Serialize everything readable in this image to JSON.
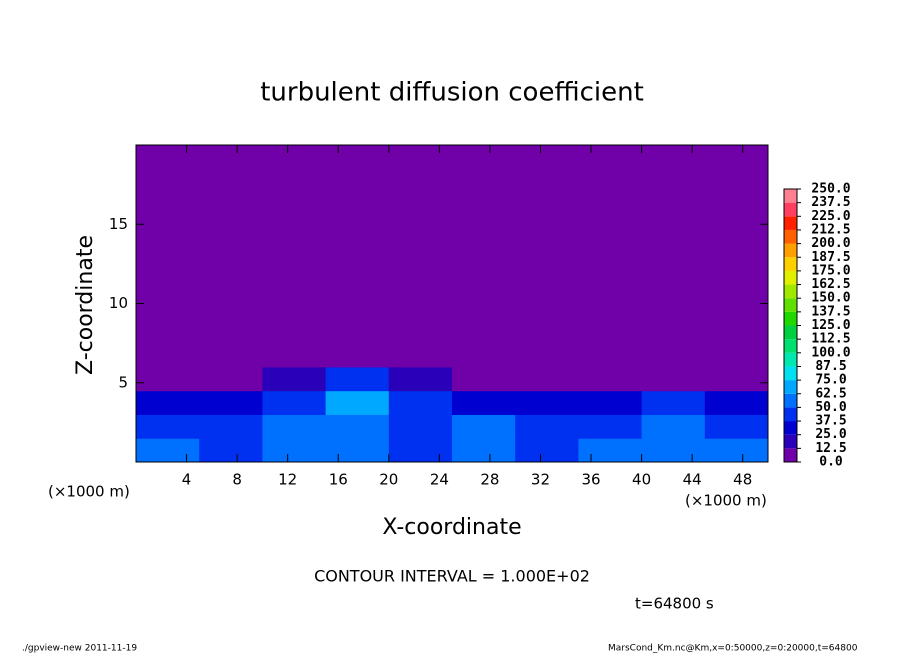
{
  "chart_data": {
    "type": "heatmap",
    "title": "turbulent diffusion coefficient",
    "x_label": "X-coordinate",
    "y_label": "Z-coordinate",
    "unit_label": "(×1000 m)",
    "xlim": [
      0,
      50
    ],
    "xticks": [
      4,
      8,
      12,
      16,
      20,
      24,
      28,
      32,
      36,
      40,
      44,
      48
    ],
    "ylim": [
      0,
      20
    ],
    "yticks": [
      5,
      10,
      15
    ],
    "x_bins": [
      0,
      5,
      10,
      15,
      20,
      25,
      30,
      35,
      40,
      45,
      50
    ],
    "z_bins": [
      0,
      1.5,
      3,
      4.5,
      6,
      20
    ],
    "values": [
      [
        50,
        45,
        55,
        60,
        40,
        50,
        45,
        50,
        55,
        50
      ],
      [
        45,
        40,
        50,
        55,
        45,
        50,
        40,
        45,
        50,
        40
      ],
      [
        35,
        30,
        40,
        70,
        40,
        35,
        30,
        35,
        40,
        30
      ],
      [
        10,
        10,
        20,
        40,
        15,
        10,
        10,
        10,
        10,
        10
      ],
      [
        5,
        5,
        5,
        5,
        5,
        5,
        5,
        5,
        5,
        5
      ]
    ],
    "colorbar": {
      "ticks": [
        {
          "value": 0,
          "label": "0.0"
        },
        {
          "value": 12.5,
          "label": "12.5"
        },
        {
          "value": 25,
          "label": "25.0"
        },
        {
          "value": 37.5,
          "label": "37.5"
        },
        {
          "value": 50,
          "label": "50.0"
        },
        {
          "value": 62.5,
          "label": "62.5"
        },
        {
          "value": 75,
          "label": "75.0"
        },
        {
          "value": 87.5,
          "label": "87.5"
        },
        {
          "value": 100,
          "label": "100.0"
        },
        {
          "value": 112.5,
          "label": "112.5"
        },
        {
          "value": 125,
          "label": "125.0"
        },
        {
          "value": 137.5,
          "label": "137.5"
        },
        {
          "value": 150,
          "label": "150.0"
        },
        {
          "value": 162.5,
          "label": "162.5"
        },
        {
          "value": 175,
          "label": "175.0"
        },
        {
          "value": 187.5,
          "label": "187.5"
        },
        {
          "value": 200,
          "label": "200.0"
        },
        {
          "value": 212.5,
          "label": "212.5"
        },
        {
          "value": 225,
          "label": "225.0"
        },
        {
          "value": 237.5,
          "label": "237.5"
        },
        {
          "value": 250,
          "label": "250.0"
        }
      ],
      "colors": [
        "#7000a8",
        "#2a00b8",
        "#0000d0",
        "#0030f0",
        "#0070ff",
        "#00a8ff",
        "#00e0f0",
        "#00e8b0",
        "#00e070",
        "#00d040",
        "#20d800",
        "#60e000",
        "#a0e800",
        "#e0f000",
        "#ffd000",
        "#ffa000",
        "#ff6000",
        "#ff2000",
        "#ff4060",
        "#ff8090"
      ]
    },
    "contour_interval": "CONTOUR INTERVAL = 1.000E+02",
    "time_label": "t=64800 s"
  },
  "footer": {
    "left": "./gpview-new   2011-11-19",
    "right": "MarsCond_Km.nc@Km,x=0:50000,z=0:20000,t=64800"
  }
}
